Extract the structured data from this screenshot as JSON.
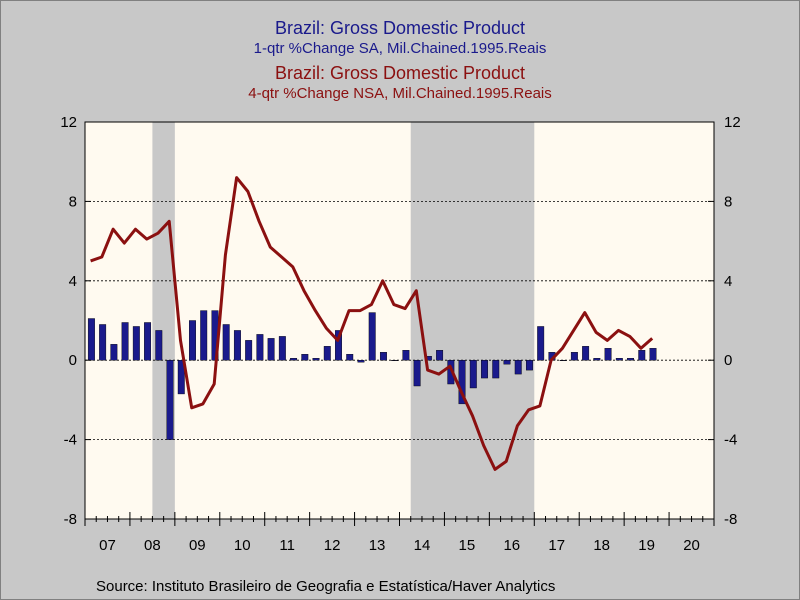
{
  "titles": {
    "line1": "Brazil: Gross Domestic Product",
    "line2": "1-qtr %Change     SA, Mil.Chained.1995.Reais",
    "line3": "Brazil: Gross Domestic Product",
    "line4": "4-qtr %Change     NSA, Mil.Chained.1995.Reais"
  },
  "source": "Source:  Instituto Brasileiro de Geografia e Estatística/Haver Analytics",
  "colors": {
    "bars": "#1a1a8c",
    "line": "#8b1010",
    "plot_bg": "#fffaf0",
    "recession": "#c8c8c8"
  },
  "chart_data": {
    "type": "bar",
    "ylim": [
      -8,
      12
    ],
    "yticks": [
      -8,
      -4,
      0,
      4,
      8,
      12
    ],
    "ytick_labels": [
      "-8",
      "-4",
      "0",
      "4",
      "8",
      "12"
    ],
    "grid": "dashed horizontal",
    "x_start": "2007Q1",
    "x_end": "2020Q4",
    "xtick_labels": [
      "07",
      "08",
      "09",
      "10",
      "11",
      "12",
      "13",
      "14",
      "15",
      "16",
      "17",
      "18",
      "19",
      "20"
    ],
    "shaded_periods": [
      {
        "start": "2008Q3",
        "end": "2008Q4"
      },
      {
        "start": "2014Q2",
        "end": "2016Q4"
      }
    ],
    "series": [
      {
        "name": "Brazil: Gross Domestic Product 1-qtr %Change SA, Mil.Chained.1995.Reais",
        "type": "bar",
        "x": [
          "2007Q1",
          "2007Q2",
          "2007Q3",
          "2007Q4",
          "2008Q1",
          "2008Q2",
          "2008Q3",
          "2008Q4",
          "2009Q1",
          "2009Q2",
          "2009Q3",
          "2009Q4",
          "2010Q1",
          "2010Q2",
          "2010Q3",
          "2010Q4",
          "2011Q1",
          "2011Q2",
          "2011Q3",
          "2011Q4",
          "2012Q1",
          "2012Q2",
          "2012Q3",
          "2012Q4",
          "2013Q1",
          "2013Q2",
          "2013Q3",
          "2013Q4",
          "2014Q1",
          "2014Q2",
          "2014Q3",
          "2014Q4",
          "2015Q1",
          "2015Q2",
          "2015Q3",
          "2015Q4",
          "2016Q1",
          "2016Q2",
          "2016Q3",
          "2016Q4",
          "2017Q1",
          "2017Q2",
          "2017Q3",
          "2017Q4",
          "2018Q1",
          "2018Q2",
          "2018Q3",
          "2018Q4",
          "2019Q1",
          "2019Q2",
          "2019Q3"
        ],
        "values": [
          2.1,
          1.8,
          0.8,
          1.9,
          1.7,
          1.9,
          1.5,
          -4.0,
          -1.7,
          2.0,
          2.5,
          2.5,
          1.8,
          1.5,
          1.0,
          1.3,
          1.1,
          1.2,
          0.1,
          0.3,
          0.1,
          0.7,
          1.5,
          0.3,
          -0.1,
          2.4,
          0.4,
          0.0,
          0.5,
          -1.3,
          0.2,
          0.5,
          -1.2,
          -2.2,
          -1.4,
          -0.9,
          -0.9,
          -0.2,
          -0.7,
          -0.5,
          1.7,
          0.4,
          0.0,
          0.4,
          0.7,
          0.1,
          0.6,
          0.1,
          0.1,
          0.5,
          0.6
        ]
      },
      {
        "name": "Brazil: Gross Domestic Product 4-qtr %Change NSA, Mil.Chained.1995.Reais",
        "type": "line",
        "x": [
          "2007Q1",
          "2007Q2",
          "2007Q3",
          "2007Q4",
          "2008Q1",
          "2008Q2",
          "2008Q3",
          "2008Q4",
          "2009Q1",
          "2009Q2",
          "2009Q3",
          "2009Q4",
          "2010Q1",
          "2010Q2",
          "2010Q3",
          "2010Q4",
          "2011Q1",
          "2011Q2",
          "2011Q3",
          "2011Q4",
          "2012Q1",
          "2012Q2",
          "2012Q3",
          "2012Q4",
          "2013Q1",
          "2013Q2",
          "2013Q3",
          "2013Q4",
          "2014Q1",
          "2014Q2",
          "2014Q3",
          "2014Q4",
          "2015Q1",
          "2015Q2",
          "2015Q3",
          "2015Q4",
          "2016Q1",
          "2016Q2",
          "2016Q3",
          "2016Q4",
          "2017Q1",
          "2017Q2",
          "2017Q3",
          "2017Q4",
          "2018Q1",
          "2018Q2",
          "2018Q3",
          "2018Q4",
          "2019Q1",
          "2019Q2",
          "2019Q3"
        ],
        "values": [
          5.0,
          5.2,
          6.6,
          5.9,
          6.6,
          6.1,
          6.4,
          7.0,
          1.0,
          -2.4,
          -2.2,
          -1.2,
          5.3,
          9.2,
          8.5,
          7.0,
          5.7,
          5.2,
          4.7,
          3.5,
          2.5,
          1.6,
          1.0,
          2.5,
          2.5,
          2.8,
          4.0,
          2.8,
          2.6,
          3.5,
          -0.5,
          -0.7,
          -0.3,
          -1.6,
          -2.8,
          -4.3,
          -5.5,
          -5.1,
          -3.3,
          -2.5,
          -2.3,
          0.0,
          0.6,
          1.5,
          2.4,
          1.4,
          1.0,
          1.5,
          1.2,
          0.6,
          1.1
        ]
      }
    ]
  }
}
